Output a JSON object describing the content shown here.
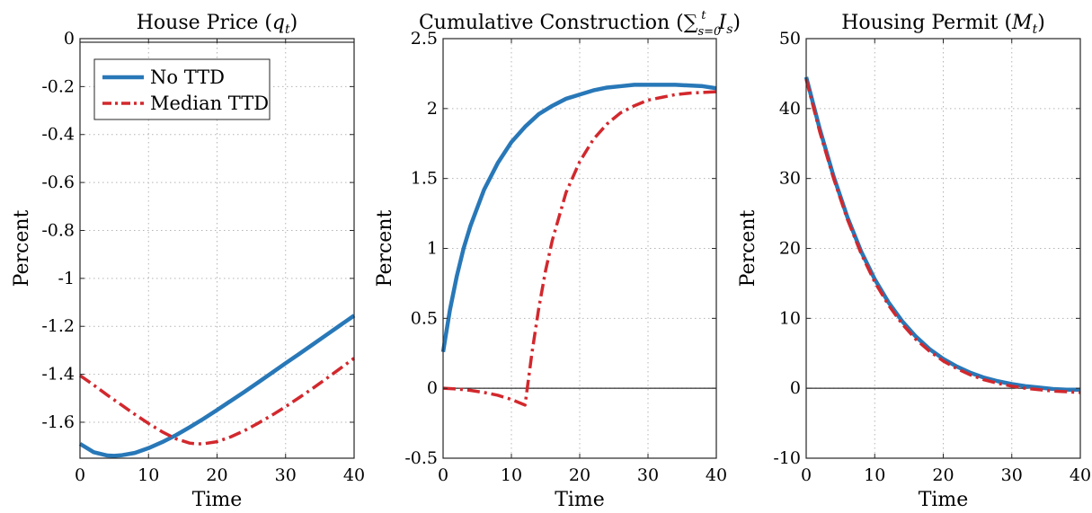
{
  "chart_data": [
    {
      "type": "line",
      "title": "House Price (q_t)",
      "title_parts": {
        "main": "House Price (",
        "var": "q",
        "sub": "t",
        "close": ")"
      },
      "xlabel": "Time",
      "ylabel": "Percent",
      "xlim": [
        0,
        40
      ],
      "ylim": [
        -1.75,
        0
      ],
      "xticks": [
        0,
        10,
        20,
        30,
        40
      ],
      "yticks": [
        0,
        -0.2,
        -0.4,
        -0.6,
        -0.8,
        -1,
        -1.2,
        -1.4,
        -1.6
      ],
      "ytick_labels": [
        "0",
        "-0.2",
        "-0.4",
        "-0.6",
        "-0.8",
        "-1",
        "-1.2",
        "-1.4",
        "-1.6"
      ],
      "grid": true,
      "zero_line": true,
      "legend": {
        "placement": "top-left",
        "entries": [
          "No TTD",
          "Median TTD"
        ]
      },
      "series": [
        {
          "name": "No TTD",
          "style": "solid",
          "color": "#2878b8",
          "x": [
            0,
            2,
            4,
            5,
            6,
            8,
            10,
            12,
            14,
            16,
            18,
            20,
            22,
            24,
            26,
            28,
            30,
            32,
            34,
            36,
            38,
            40
          ],
          "y": [
            -1.69,
            -1.725,
            -1.739,
            -1.74,
            -1.738,
            -1.728,
            -1.708,
            -1.683,
            -1.654,
            -1.621,
            -1.586,
            -1.549,
            -1.511,
            -1.473,
            -1.434,
            -1.394,
            -1.354,
            -1.315,
            -1.275,
            -1.235,
            -1.195,
            -1.155
          ]
        },
        {
          "name": "Median TTD",
          "style": "dashdot",
          "color": "#d2282d",
          "x": [
            0,
            2,
            4,
            6,
            8,
            10,
            12,
            14,
            16,
            17,
            18,
            20,
            22,
            24,
            26,
            28,
            30,
            32,
            34,
            36,
            38,
            40
          ],
          "y": [
            -1.405,
            -1.445,
            -1.487,
            -1.527,
            -1.567,
            -1.605,
            -1.64,
            -1.669,
            -1.687,
            -1.69,
            -1.69,
            -1.681,
            -1.661,
            -1.635,
            -1.604,
            -1.571,
            -1.535,
            -1.497,
            -1.458,
            -1.417,
            -1.375,
            -1.333
          ]
        }
      ]
    },
    {
      "type": "line",
      "title": "Cumulative Construction (∑_{s=0}^{t} I_s)",
      "title_parts": {
        "main": "Cumulative Construction (",
        "sum": "∑",
        "sub": "s=0",
        "sup": "t",
        "var": "I",
        "var_sub": "s",
        "close": ")"
      },
      "xlabel": "Time",
      "ylabel": "Percent",
      "xlim": [
        0,
        40
      ],
      "ylim": [
        -0.5,
        2.5
      ],
      "xticks": [
        0,
        10,
        20,
        30,
        40
      ],
      "yticks": [
        -0.5,
        0,
        0.5,
        1,
        1.5,
        2,
        2.5
      ],
      "ytick_labels": [
        "-0.5",
        "0",
        "0.5",
        "1",
        "1.5",
        "2",
        "2.5"
      ],
      "grid": true,
      "zero_line": true,
      "series": [
        {
          "name": "No TTD",
          "style": "solid",
          "color": "#2878b8",
          "x": [
            0,
            1,
            2,
            3,
            4,
            6,
            8,
            10,
            12,
            14,
            16,
            18,
            20,
            22,
            24,
            26,
            28,
            30,
            32,
            34,
            36,
            38,
            40
          ],
          "y": [
            0.26,
            0.56,
            0.8,
            1.0,
            1.16,
            1.42,
            1.61,
            1.76,
            1.87,
            1.96,
            2.02,
            2.07,
            2.1,
            2.13,
            2.15,
            2.16,
            2.17,
            2.17,
            2.17,
            2.17,
            2.165,
            2.16,
            2.145
          ]
        },
        {
          "name": "Median TTD",
          "style": "dashdot",
          "color": "#d2282d",
          "x": [
            0,
            2,
            4,
            6,
            8,
            10,
            11,
            12,
            13,
            14,
            15,
            16,
            18,
            20,
            22,
            24,
            26,
            28,
            30,
            32,
            34,
            36,
            38,
            40
          ],
          "y": [
            0.0,
            -0.005,
            -0.015,
            -0.03,
            -0.05,
            -0.08,
            -0.1,
            -0.12,
            0.25,
            0.57,
            0.84,
            1.06,
            1.4,
            1.62,
            1.78,
            1.89,
            1.97,
            2.02,
            2.06,
            2.08,
            2.1,
            2.11,
            2.115,
            2.12
          ]
        }
      ]
    },
    {
      "type": "line",
      "title": "Housing Permit (M_t)",
      "title_parts": {
        "main": "Housing Permit (",
        "var": "M",
        "sub": "t",
        "close": ")"
      },
      "xlabel": "Time",
      "ylabel": "Percent",
      "xlim": [
        0,
        40
      ],
      "ylim": [
        -10,
        50
      ],
      "xticks": [
        0,
        10,
        20,
        30,
        40
      ],
      "yticks": [
        -10,
        0,
        10,
        20,
        30,
        40,
        50
      ],
      "ytick_labels": [
        "-10",
        "0",
        "10",
        "20",
        "30",
        "40",
        "50"
      ],
      "grid": true,
      "zero_line": true,
      "series": [
        {
          "name": "No TTD",
          "style": "solid",
          "color": "#2878b8",
          "x": [
            0,
            2,
            4,
            6,
            8,
            10,
            12,
            14,
            16,
            18,
            20,
            22,
            24,
            26,
            28,
            30,
            32,
            34,
            36,
            38,
            40
          ],
          "y": [
            44.5,
            37.0,
            30.3,
            24.5,
            19.6,
            15.6,
            12.3,
            9.6,
            7.4,
            5.6,
            4.2,
            3.1,
            2.2,
            1.5,
            1.0,
            0.6,
            0.3,
            0.1,
            -0.1,
            -0.2,
            -0.2
          ]
        },
        {
          "name": "Median TTD",
          "style": "dashdot",
          "color": "#d2282d",
          "x": [
            0,
            2,
            4,
            6,
            8,
            10,
            12,
            14,
            16,
            18,
            20,
            22,
            24,
            26,
            28,
            30,
            32,
            34,
            36,
            38,
            40
          ],
          "y": [
            44.2,
            36.6,
            30.0,
            24.2,
            19.3,
            15.2,
            11.9,
            9.2,
            7.0,
            5.3,
            3.9,
            2.8,
            1.9,
            1.2,
            0.7,
            0.3,
            0.0,
            -0.2,
            -0.4,
            -0.5,
            -0.6
          ]
        }
      ]
    }
  ]
}
